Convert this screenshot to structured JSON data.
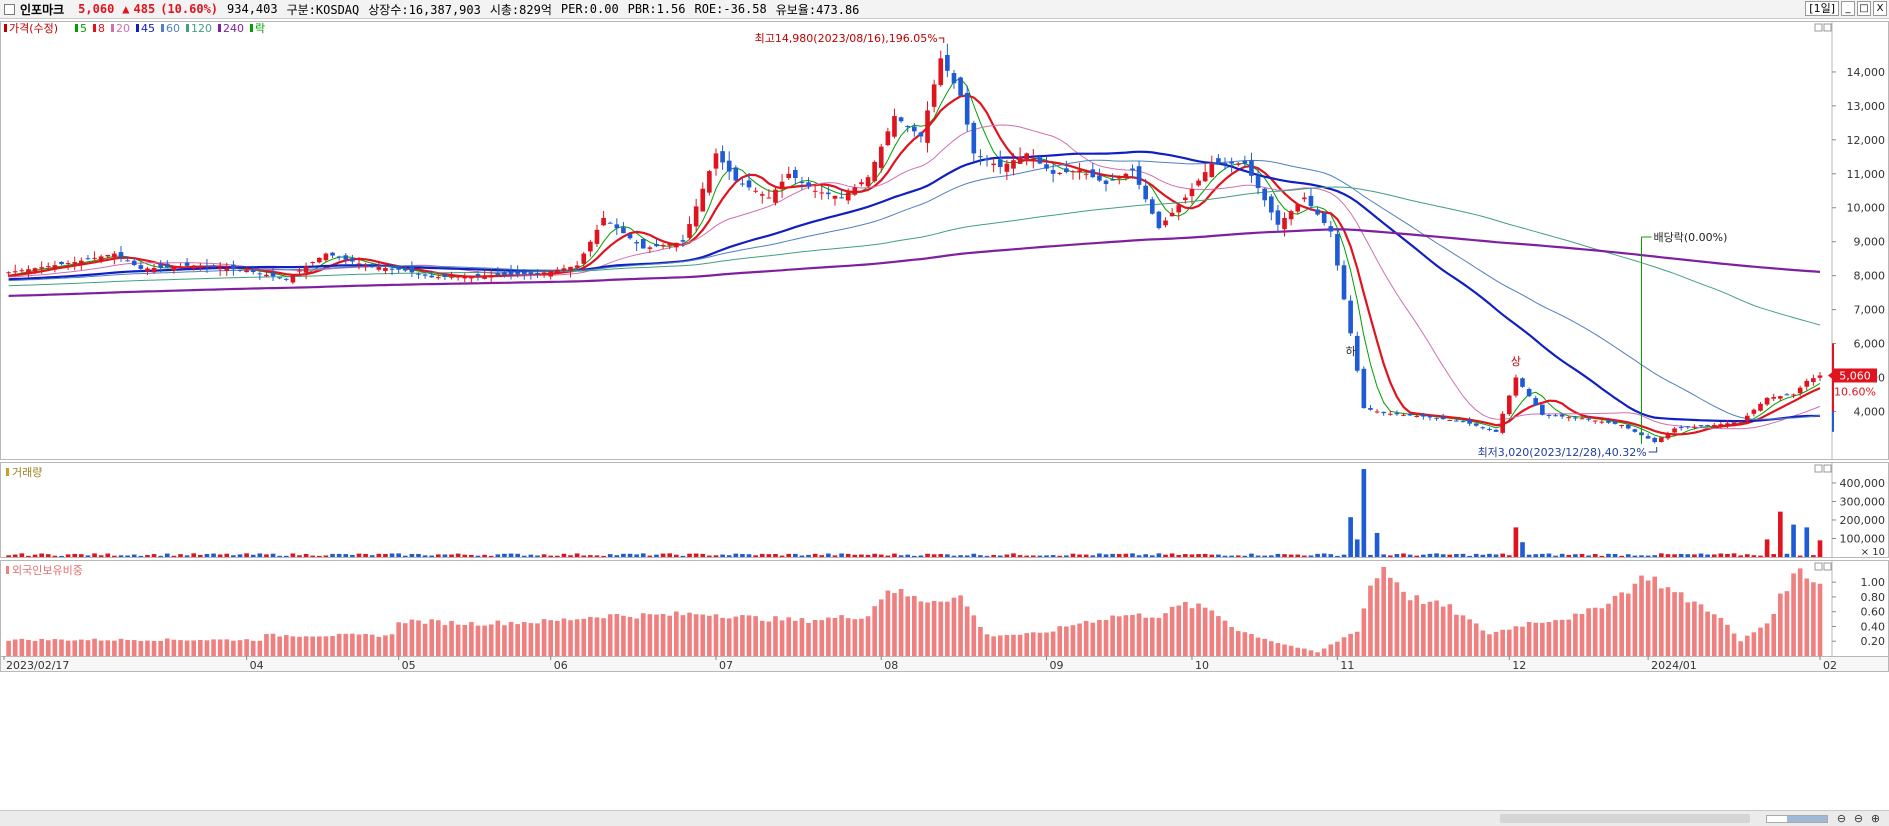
{
  "header": {
    "stock_name": "인포마크",
    "price": "5,060",
    "change_arrow": "▲",
    "change": "485",
    "change_pct": "(10.60%)",
    "volume": "934,403",
    "market": "구분:KOSDAQ",
    "shares": "상장수:16,387,903",
    "market_cap": "시총:829억",
    "per": "PER:0.00",
    "pbr": "PBR:1.56",
    "roe": "ROE:-36.58",
    "float": "유보율:473.86",
    "period": "[1일]",
    "btn_min": "_",
    "btn_max": "□",
    "btn_close": "X"
  },
  "chart_data": [
    {
      "type": "candlestick",
      "panel": "price",
      "legend": [
        {
          "label": "가격(수정)",
          "color": "#c00000"
        },
        {
          "label": "5",
          "color": "#00a000"
        },
        {
          "label": "8",
          "color": "#e0141e"
        },
        {
          "label": "20",
          "color": "#d070b0"
        },
        {
          "label": "45",
          "color": "#1020c0"
        },
        {
          "label": "60",
          "color": "#5080c0"
        },
        {
          "label": "120",
          "color": "#40a080"
        },
        {
          "label": "240",
          "color": "#8020a0"
        },
        {
          "label": "락",
          "color": "#00a000"
        }
      ],
      "y_ticks": [
        "4,000",
        "5,000",
        "6,000",
        "7,000",
        "8,000",
        "9,000",
        "10,000",
        "11,000",
        "12,000",
        "13,000",
        "14,000"
      ],
      "y_tick_values": [
        4000,
        5000,
        6000,
        7000,
        8000,
        9000,
        10000,
        11000,
        12000,
        13000,
        14000
      ],
      "ylim": [
        2600,
        15500
      ],
      "x_ticks": [
        {
          "label": "2023/02/17",
          "day": 0
        },
        {
          "label": "04",
          "day": 36
        },
        {
          "label": "05",
          "day": 59
        },
        {
          "label": "06",
          "day": 82
        },
        {
          "label": "07",
          "day": 107
        },
        {
          "label": "08",
          "day": 132
        },
        {
          "label": "09",
          "day": 157
        },
        {
          "label": "10",
          "day": 179
        },
        {
          "label": "11",
          "day": 201
        },
        {
          "label": "12",
          "day": 227
        },
        {
          "label": "2024/01",
          "day": 248
        },
        {
          "label": "02",
          "day": 274
        }
      ],
      "n_days": 274,
      "close_points": [
        [
          0,
          8100
        ],
        [
          10,
          8400
        ],
        [
          16,
          8650
        ],
        [
          20,
          8200
        ],
        [
          28,
          8300
        ],
        [
          36,
          8150
        ],
        [
          42,
          7900
        ],
        [
          48,
          8650
        ],
        [
          54,
          8300
        ],
        [
          60,
          8150
        ],
        [
          64,
          7950
        ],
        [
          72,
          8000
        ],
        [
          80,
          8050
        ],
        [
          86,
          8300
        ],
        [
          90,
          9700
        ],
        [
          96,
          8800
        ],
        [
          102,
          9000
        ],
        [
          107,
          11600
        ],
        [
          110,
          10800
        ],
        [
          115,
          10300
        ],
        [
          118,
          11000
        ],
        [
          122,
          10500
        ],
        [
          126,
          10300
        ],
        [
          130,
          10900
        ],
        [
          134,
          12700
        ],
        [
          138,
          12100
        ],
        [
          141,
          14400
        ],
        [
          144,
          13300
        ],
        [
          146,
          11600
        ],
        [
          150,
          11200
        ],
        [
          154,
          11600
        ],
        [
          158,
          11000
        ],
        [
          162,
          11100
        ],
        [
          166,
          10700
        ],
        [
          170,
          11100
        ],
        [
          174,
          9400
        ],
        [
          178,
          10300
        ],
        [
          182,
          11300
        ],
        [
          187,
          11300
        ],
        [
          192,
          9500
        ],
        [
          196,
          10300
        ],
        [
          200,
          9300
        ],
        [
          203,
          6300
        ],
        [
          205,
          4100
        ],
        [
          208,
          3950
        ],
        [
          214,
          3850
        ],
        [
          220,
          3700
        ],
        [
          225,
          3400
        ],
        [
          228,
          5000
        ],
        [
          232,
          3900
        ],
        [
          238,
          3800
        ],
        [
          244,
          3600
        ],
        [
          249,
          3100
        ],
        [
          252,
          3500
        ],
        [
          258,
          3600
        ],
        [
          262,
          3700
        ],
        [
          266,
          4400
        ],
        [
          270,
          4500
        ],
        [
          272,
          4900
        ],
        [
          274,
          5060
        ]
      ],
      "high_label": "최고14,980(2023/08/16),196.05%",
      "low_label": "최저3,020(2023/12/28),40.32%",
      "dividend_label": "배당락(0.00%)",
      "markers": [
        "하",
        "상"
      ],
      "current_price": "5,060",
      "current_pct": "10.60%"
    },
    {
      "type": "bar",
      "panel": "volume",
      "title": "거래량",
      "y_ticks": [
        "100,000",
        "200,000",
        "300,000",
        "400,000"
      ],
      "y_tick_values": [
        100000,
        200000,
        300000,
        400000
      ],
      "ylim": [
        0,
        470000
      ],
      "unit": "× 10",
      "spikes": [
        {
          "day": 203,
          "value": 215000,
          "dir": "down"
        },
        {
          "day": 204,
          "value": 95000,
          "dir": "down"
        },
        {
          "day": 205,
          "value": 475000,
          "dir": "down"
        },
        {
          "day": 207,
          "value": 130000,
          "dir": "down"
        },
        {
          "day": 228,
          "value": 160000,
          "dir": "up"
        },
        {
          "day": 229,
          "value": 80000,
          "dir": "down"
        },
        {
          "day": 266,
          "value": 95000,
          "dir": "up"
        },
        {
          "day": 268,
          "value": 245000,
          "dir": "up"
        },
        {
          "day": 270,
          "value": 175000,
          "dir": "down"
        },
        {
          "day": 272,
          "value": 160000,
          "dir": "down"
        },
        {
          "day": 274,
          "value": 90000,
          "dir": "up"
        }
      ]
    },
    {
      "type": "bar",
      "panel": "foreign_holding",
      "title": "외국인보유비중",
      "y_ticks": [
        "0.20",
        "0.40",
        "0.60",
        "0.80",
        "1.00"
      ],
      "y_tick_values": [
        0.2,
        0.4,
        0.6,
        0.8,
        1.0
      ],
      "ylim": [
        0,
        1.3
      ],
      "color": "#f08080",
      "points": [
        [
          0,
          0.22
        ],
        [
          38,
          0.22
        ],
        [
          39,
          0.28
        ],
        [
          58,
          0.28
        ],
        [
          59,
          0.48
        ],
        [
          70,
          0.44
        ],
        [
          82,
          0.47
        ],
        [
          90,
          0.55
        ],
        [
          98,
          0.55
        ],
        [
          106,
          0.58
        ],
        [
          112,
          0.52
        ],
        [
          120,
          0.48
        ],
        [
          130,
          0.55
        ],
        [
          133,
          0.92
        ],
        [
          138,
          0.75
        ],
        [
          144,
          0.8
        ],
        [
          148,
          0.28
        ],
        [
          156,
          0.3
        ],
        [
          162,
          0.45
        ],
        [
          168,
          0.55
        ],
        [
          174,
          0.55
        ],
        [
          178,
          0.7
        ],
        [
          182,
          0.62
        ],
        [
          186,
          0.35
        ],
        [
          192,
          0.18
        ],
        [
          198,
          0.05
        ],
        [
          204,
          0.35
        ],
        [
          206,
          0.95
        ],
        [
          208,
          1.2
        ],
        [
          212,
          0.8
        ],
        [
          218,
          0.65
        ],
        [
          224,
          0.3
        ],
        [
          230,
          0.45
        ],
        [
          238,
          0.55
        ],
        [
          244,
          0.85
        ],
        [
          248,
          1.1
        ],
        [
          252,
          0.85
        ],
        [
          258,
          0.6
        ],
        [
          262,
          0.2
        ],
        [
          266,
          0.45
        ],
        [
          269,
          0.95
        ],
        [
          271,
          1.18
        ],
        [
          274,
          0.98
        ]
      ]
    }
  ]
}
